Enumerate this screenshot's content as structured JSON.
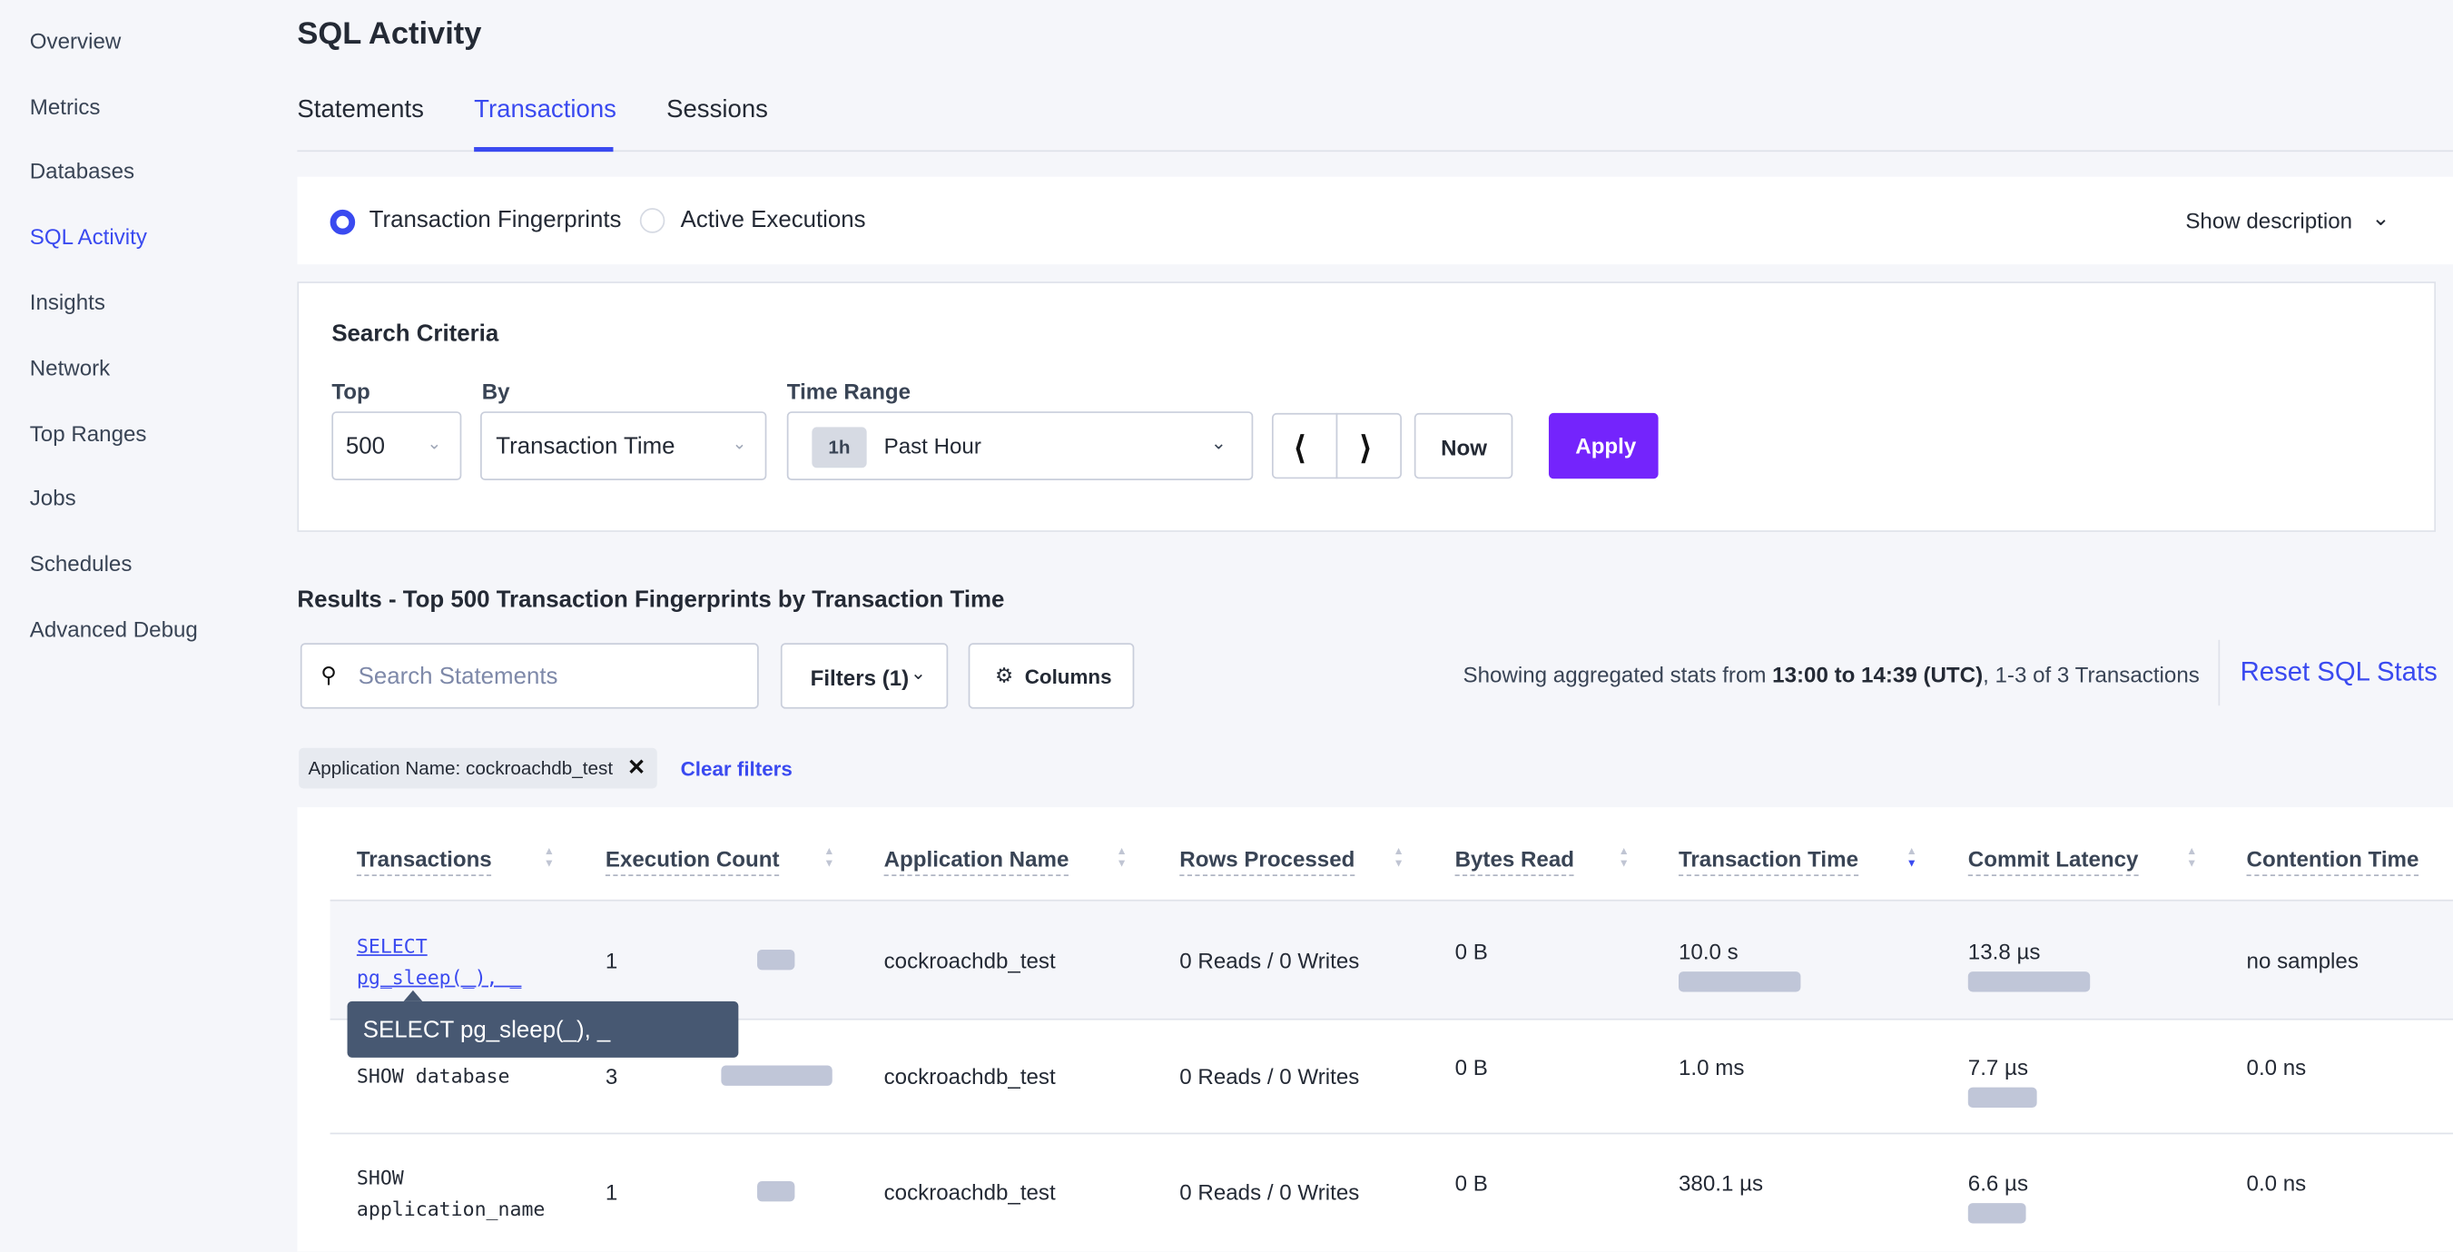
{
  "sidebar": {
    "items": [
      {
        "label": "Overview"
      },
      {
        "label": "Metrics"
      },
      {
        "label": "Databases"
      },
      {
        "label": "SQL Activity",
        "active": true
      },
      {
        "label": "Insights"
      },
      {
        "label": "Network"
      },
      {
        "label": "Top Ranges"
      },
      {
        "label": "Jobs"
      },
      {
        "label": "Schedules"
      },
      {
        "label": "Advanced Debug"
      }
    ]
  },
  "page": {
    "title": "SQL Activity"
  },
  "tabs": [
    {
      "label": "Statements"
    },
    {
      "label": "Transactions",
      "active": true
    },
    {
      "label": "Sessions"
    }
  ],
  "view": {
    "options": [
      {
        "label": "Transaction Fingerprints",
        "selected": true
      },
      {
        "label": "Active Executions",
        "selected": false
      }
    ],
    "show_description": "Show description"
  },
  "search_criteria": {
    "title": "Search Criteria",
    "top_label": "Top",
    "top_value": "500",
    "by_label": "By",
    "by_value": "Transaction Time",
    "time_label": "Time Range",
    "time_badge": "1h",
    "time_value": "Past Hour",
    "now": "Now",
    "apply": "Apply"
  },
  "results": {
    "title": "Results - Top 500 Transaction Fingerprints by Transaction Time",
    "search_placeholder": "Search Statements",
    "filters": "Filters (1)",
    "columns": "Columns",
    "stats_prefix": "Showing aggregated stats from ",
    "stats_range": "13:00 to 14:39 (UTC)",
    "stats_suffix": ", 1-3 of 3 Transactions",
    "reset": "Reset SQL Stats",
    "chip": "Application Name: cockroachdb_test",
    "clear": "Clear filters"
  },
  "table": {
    "headers": [
      "Transactions",
      "Execution Count",
      "Application Name",
      "Rows Processed",
      "Bytes Read",
      "Transaction Time",
      "Commit Latency",
      "Contention Time"
    ],
    "sorted_column": "Transaction Time",
    "sort_direction": "descending",
    "rows": [
      {
        "txn1": "SELECT",
        "txn2": "pg_sleep(_), _",
        "count": "1",
        "count_bar": 0.33,
        "app": "cockroachdb_test",
        "rows": "0 Reads / 0 Writes",
        "bytes": "0 B",
        "time": "10.0 s",
        "time_bar": 1.0,
        "commit": "13.8 µs",
        "commit_bar": 1.0,
        "contention": "no samples",
        "link": true
      },
      {
        "txn1": "SHOW database",
        "txn2": "",
        "count": "3",
        "count_bar": 1.0,
        "app": "cockroachdb_test",
        "rows": "0 Reads / 0 Writes",
        "bytes": "0 B",
        "time": "1.0 ms",
        "time_bar": 0,
        "commit": "7.7 µs",
        "commit_bar": 0.56,
        "contention": "0.0 ns"
      },
      {
        "txn1": "SHOW",
        "txn2": "application_name",
        "count": "1",
        "count_bar": 0.33,
        "app": "cockroachdb_test",
        "rows": "0 Reads / 0 Writes",
        "bytes": "0 B",
        "time": "380.1 µs",
        "time_bar": 0,
        "commit": "6.6 µs",
        "commit_bar": 0.47,
        "contention": "0.0 ns"
      }
    ]
  },
  "tooltip": "SELECT pg_sleep(_), _",
  "colors": {
    "accent": "#3a4af0",
    "apply": "#7424fc",
    "tooltip": "#475872"
  }
}
